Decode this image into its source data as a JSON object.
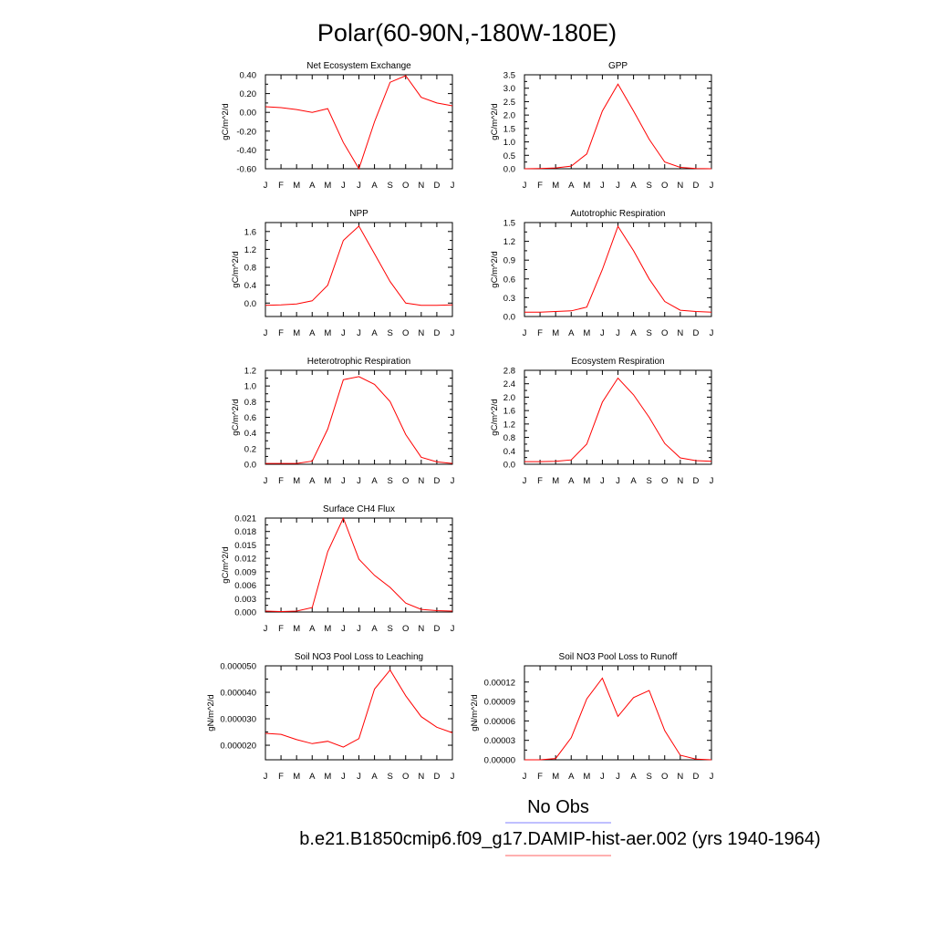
{
  "page": {
    "title": "Polar(60-90N,-180W-180E)"
  },
  "legend": {
    "items": [
      {
        "label": "No Obs",
        "color": "#8080ff"
      },
      {
        "label": "b.e21.B1850cmip6.f09_g17.DAMIP-hist-aer.002 (yrs 1940-1964)",
        "color": "#ff6060"
      }
    ]
  },
  "colors": {
    "series": "#ff0000",
    "axis": "#000000"
  },
  "chart_data": [
    {
      "type": "line",
      "title": "Net Ecosystem Exchange",
      "ylabel": "gC/m^2/d",
      "x": [
        "J",
        "F",
        "M",
        "A",
        "M",
        "J",
        "J",
        "A",
        "S",
        "O",
        "N",
        "D",
        "J"
      ],
      "ylim": [
        -0.6,
        0.4
      ],
      "yticks": [
        -0.6,
        -0.4,
        -0.2,
        0.0,
        0.2,
        0.4
      ],
      "ytick_labels": [
        "-0.60",
        "-0.40",
        "-0.20",
        "0.00",
        "0.20",
        "0.40"
      ],
      "series": [
        {
          "values": [
            0.06,
            0.05,
            0.03,
            0.0,
            0.04,
            -0.32,
            -0.6,
            -0.1,
            0.32,
            0.39,
            0.16,
            0.1,
            0.07
          ]
        }
      ]
    },
    {
      "type": "line",
      "title": "GPP",
      "ylabel": "gC/m^2/d",
      "x": [
        "J",
        "F",
        "M",
        "A",
        "M",
        "J",
        "J",
        "A",
        "S",
        "O",
        "N",
        "D",
        "J"
      ],
      "ylim": [
        0,
        3.5
      ],
      "yticks": [
        0.0,
        0.5,
        1.0,
        1.5,
        2.0,
        2.5,
        3.0,
        3.5
      ],
      "ytick_labels": [
        "0.0",
        "0.5",
        "1.0",
        "1.5",
        "2.0",
        "2.5",
        "3.0",
        "3.5"
      ],
      "series": [
        {
          "values": [
            0.0,
            0.01,
            0.03,
            0.1,
            0.55,
            2.15,
            3.15,
            2.15,
            1.1,
            0.25,
            0.05,
            0.01,
            0.0
          ]
        }
      ]
    },
    {
      "type": "line",
      "title": "NPP",
      "ylabel": "gC/m^2/d",
      "x": [
        "J",
        "F",
        "M",
        "A",
        "M",
        "J",
        "J",
        "A",
        "S",
        "O",
        "N",
        "D",
        "J"
      ],
      "ylim": [
        -0.3,
        1.8
      ],
      "yticks": [
        0.0,
        0.4,
        0.8,
        1.2,
        1.6
      ],
      "ytick_labels": [
        "0.0",
        "0.4",
        "0.8",
        "1.2",
        "1.6"
      ],
      "series": [
        {
          "values": [
            -0.05,
            -0.04,
            -0.02,
            0.05,
            0.4,
            1.4,
            1.72,
            1.1,
            0.48,
            0.0,
            -0.05,
            -0.05,
            -0.04
          ]
        }
      ]
    },
    {
      "type": "line",
      "title": "Autotrophic Respiration",
      "ylabel": "gC/m^2/d",
      "x": [
        "J",
        "F",
        "M",
        "A",
        "M",
        "J",
        "J",
        "A",
        "S",
        "O",
        "N",
        "D",
        "J"
      ],
      "ylim": [
        0,
        1.5
      ],
      "yticks": [
        0.0,
        0.3,
        0.6,
        0.9,
        1.2,
        1.5
      ],
      "ytick_labels": [
        "0.0",
        "0.3",
        "0.6",
        "0.9",
        "1.2",
        "1.5"
      ],
      "series": [
        {
          "values": [
            0.07,
            0.07,
            0.08,
            0.09,
            0.15,
            0.75,
            1.44,
            1.05,
            0.6,
            0.24,
            0.1,
            0.08,
            0.07
          ]
        }
      ]
    },
    {
      "type": "line",
      "title": "Heterotrophic Respiration",
      "ylabel": "gC/m^2/d",
      "x": [
        "J",
        "F",
        "M",
        "A",
        "M",
        "J",
        "J",
        "A",
        "S",
        "O",
        "N",
        "D",
        "J"
      ],
      "ylim": [
        0,
        1.2
      ],
      "yticks": [
        0.0,
        0.2,
        0.4,
        0.6,
        0.8,
        1.0,
        1.2
      ],
      "ytick_labels": [
        "0.0",
        "0.2",
        "0.4",
        "0.6",
        "0.8",
        "1.0",
        "1.2"
      ],
      "series": [
        {
          "values": [
            0.01,
            0.01,
            0.01,
            0.04,
            0.45,
            1.08,
            1.12,
            1.02,
            0.8,
            0.38,
            0.09,
            0.03,
            0.01
          ]
        }
      ]
    },
    {
      "type": "line",
      "title": "Ecosystem Respiration",
      "ylabel": "gC/m^2/d",
      "x": [
        "J",
        "F",
        "M",
        "A",
        "M",
        "J",
        "J",
        "A",
        "S",
        "O",
        "N",
        "D",
        "J"
      ],
      "ylim": [
        0,
        2.8
      ],
      "yticks": [
        0.0,
        0.4,
        0.8,
        1.2,
        1.6,
        2.0,
        2.4,
        2.8
      ],
      "ytick_labels": [
        "0.0",
        "0.4",
        "0.8",
        "1.2",
        "1.6",
        "2.0",
        "2.4",
        "2.8"
      ],
      "series": [
        {
          "values": [
            0.08,
            0.08,
            0.09,
            0.13,
            0.6,
            1.85,
            2.57,
            2.07,
            1.4,
            0.62,
            0.19,
            0.11,
            0.09
          ]
        }
      ]
    },
    {
      "type": "line",
      "title": "Surface CH4 Flux",
      "ylabel": "gC/m^2/d",
      "x": [
        "J",
        "F",
        "M",
        "A",
        "M",
        "J",
        "J",
        "A",
        "S",
        "O",
        "N",
        "D",
        "J"
      ],
      "ylim": [
        0,
        0.021
      ],
      "yticks": [
        0.0,
        0.003,
        0.006,
        0.009,
        0.012,
        0.015,
        0.018,
        0.021
      ],
      "ytick_labels": [
        "0.000",
        "0.003",
        "0.006",
        "0.009",
        "0.012",
        "0.015",
        "0.018",
        "0.021"
      ],
      "series": [
        {
          "values": [
            0.0002,
            0.0001,
            0.0002,
            0.001,
            0.0135,
            0.021,
            0.0118,
            0.0082,
            0.0055,
            0.002,
            0.0006,
            0.0003,
            0.0002
          ]
        }
      ]
    },
    {
      "type": "line",
      "title": "Soil NO3 Pool Loss to Leaching",
      "ylabel": "gN/m^2/d",
      "x": [
        "J",
        "F",
        "M",
        "A",
        "M",
        "J",
        "J",
        "A",
        "S",
        "O",
        "N",
        "D",
        "J"
      ],
      "ylim": [
        1.45e-05,
        5e-05
      ],
      "yticks": [
        2e-05,
        3e-05,
        4e-05,
        5e-05
      ],
      "ytick_labels": [
        "0.000020",
        "0.000030",
        "0.000040",
        "0.000050"
      ],
      "series": [
        {
          "values": [
            2.45e-05,
            2.41e-05,
            2.21e-05,
            2.06e-05,
            2.15e-05,
            1.93e-05,
            2.25e-05,
            4.12e-05,
            4.84e-05,
            3.87e-05,
            3.08e-05,
            2.68e-05,
            2.47e-05
          ]
        }
      ]
    },
    {
      "type": "line",
      "title": "Soil NO3 Pool Loss to Runoff",
      "ylabel": "gN/m^2/d",
      "x": [
        "J",
        "F",
        "M",
        "A",
        "M",
        "J",
        "J",
        "A",
        "S",
        "O",
        "N",
        "D",
        "J"
      ],
      "ylim": [
        0,
        0.000145
      ],
      "yticks": [
        0,
        3e-05,
        6e-05,
        9e-05,
        0.00012
      ],
      "ytick_labels": [
        "0.00000",
        "0.00003",
        "0.00006",
        "0.00009",
        "0.00012"
      ],
      "series": [
        {
          "values": [
            0.0,
            0.0,
            2e-06,
            3.4e-05,
            9.4e-05,
            0.000126,
            6.7e-05,
            9.6e-05,
            0.000107,
            4.5e-05,
            7e-06,
            1e-06,
            0.0
          ]
        }
      ]
    }
  ]
}
